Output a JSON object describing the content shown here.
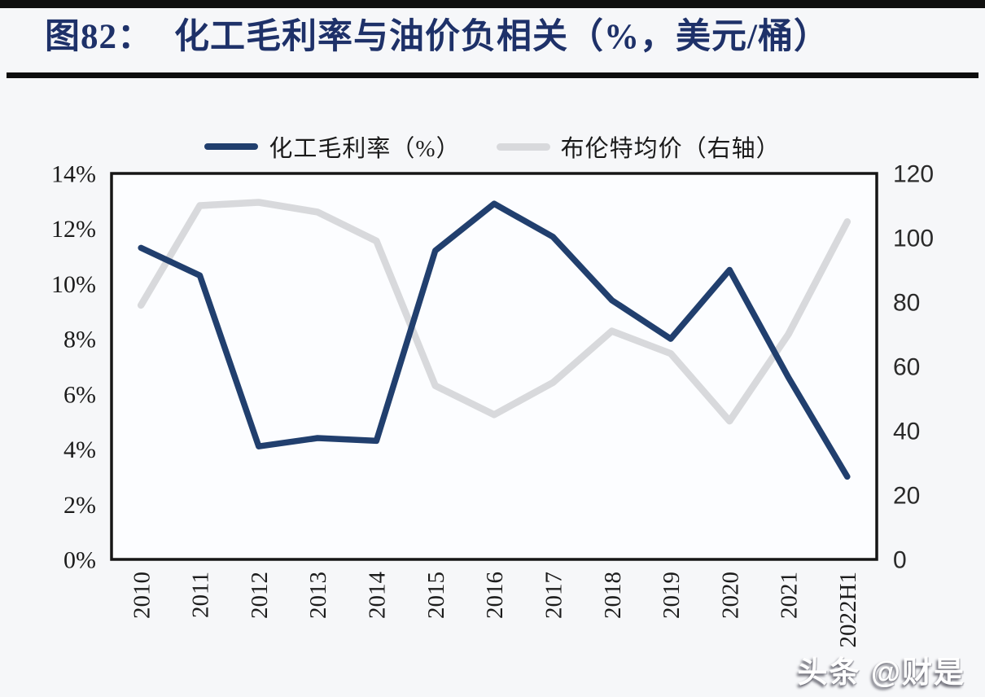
{
  "header": {
    "figure_label": "图82：",
    "title_text": "化工毛利率与油价负相关（%，美元/桶）"
  },
  "legend": {
    "items": [
      {
        "label": "化工毛利率（%）",
        "color": "#213f6e"
      },
      {
        "label": "布伦特均价（右轴）",
        "color": "#d8d9dc"
      }
    ]
  },
  "watermark": "头条 @财是",
  "chart_data": {
    "type": "line",
    "title": "图82：化工毛利率与油价负相关（%，美元/桶）",
    "categories": [
      "2010",
      "2011",
      "2012",
      "2013",
      "2014",
      "2015",
      "2016",
      "2017",
      "2018",
      "2019",
      "2020",
      "2021",
      "2022H1"
    ],
    "series": [
      {
        "name": "化工毛利率（%）",
        "axis": "left",
        "color": "#213f6e",
        "values": [
          11.3,
          10.3,
          4.1,
          4.4,
          4.3,
          11.2,
          12.9,
          11.7,
          9.4,
          8.0,
          10.5,
          6.6,
          3.0
        ]
      },
      {
        "name": "布伦特均价（右轴）",
        "axis": "right",
        "color": "#d8d9dc",
        "values": [
          79,
          110,
          111,
          108,
          99,
          54,
          45,
          55,
          71,
          64,
          43,
          70,
          105
        ]
      }
    ],
    "left_axis": {
      "min": 0,
      "max": 14,
      "unit": "%",
      "tick_values": [
        14,
        12,
        10,
        8,
        6,
        4,
        2,
        0
      ],
      "tick_labels": [
        "14%",
        "12%",
        "10%",
        "8%",
        "6%",
        "4%",
        "2%",
        "0%"
      ]
    },
    "right_axis": {
      "min": 0,
      "max": 120,
      "unit": "美元/桶",
      "tick_values": [
        120,
        100,
        80,
        60,
        40,
        20,
        0
      ],
      "tick_labels": [
        "120",
        "100",
        "80",
        "60",
        "40",
        "20",
        "0"
      ]
    },
    "legend_position": "top",
    "grid": false
  }
}
